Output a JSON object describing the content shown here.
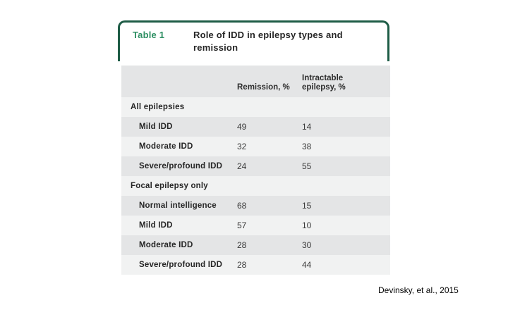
{
  "header": {
    "table_label": "Table 1"
  },
  "chart_data": {
    "type": "table",
    "title": "Role of IDD in epilepsy types and remission",
    "columns": [
      "Remission, %",
      "Intractable epilepsy, %"
    ],
    "sections": [
      {
        "name": "All epilepsies",
        "rows": [
          [
            "Mild IDD",
            49,
            14
          ],
          [
            "Moderate IDD",
            32,
            38
          ],
          [
            "Severe/profound IDD",
            24,
            55
          ]
        ]
      },
      {
        "name": "Focal epilepsy only",
        "rows": [
          [
            "Normal intelligence",
            68,
            15
          ],
          [
            "Mild IDD",
            57,
            10
          ],
          [
            "Moderate IDD",
            28,
            30
          ],
          [
            "Severe/profound IDD",
            28,
            44
          ]
        ]
      }
    ]
  },
  "citation": "Devinsky, et al., 2015",
  "colors": {
    "border_green": "#1e5c46",
    "label_green": "#2e8f63",
    "stripe_dark": "#e4e5e6",
    "stripe_light": "#f1f2f2",
    "text_dark": "#262626"
  }
}
